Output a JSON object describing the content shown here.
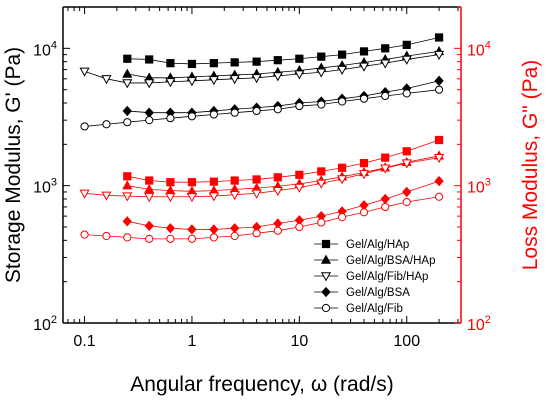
{
  "chart_data": {
    "type": "scatter",
    "xlabel": "Angular frequency, ω (rad/s)",
    "ylabel_left": "Storage Modulus, G' (Pa)",
    "ylabel_right": "Loss Modulus, G\" (Pa)",
    "x_scale": "log",
    "y_scale": "log",
    "xlim": [
      0.063,
      320
    ],
    "ylim_left": [
      100,
      20000
    ],
    "ylim_right": [
      100,
      20000
    ],
    "x_tick_labels": [
      "0.1",
      "1",
      "10",
      "100"
    ],
    "y_left_tick_labels": [
      {
        "base": "10",
        "exp": "2"
      },
      {
        "base": "10",
        "exp": "3"
      },
      {
        "base": "10",
        "exp": "4"
      }
    ],
    "y_right_tick_labels": [
      {
        "base": "10",
        "exp": "2"
      },
      {
        "base": "10",
        "exp": "3"
      },
      {
        "base": "10",
        "exp": "4"
      }
    ],
    "colors": {
      "storage": "#000000",
      "loss": "#ff0000"
    },
    "legend_position": "lower-right",
    "legend": [
      {
        "label": "Gel/Alg/HAp",
        "marker": "square-filled"
      },
      {
        "label": "Gel/Alg/BSA/HAp",
        "marker": "triangle-up-filled"
      },
      {
        "label": "Gel/Alg/Fib/HAp",
        "marker": "triangle-down-open"
      },
      {
        "label": "Gel/Alg/BSA",
        "marker": "diamond-filled"
      },
      {
        "label": "Gel/Alg/Fib",
        "marker": "circle-open"
      }
    ],
    "storage_series": [
      {
        "name": "Gel/Alg/HAp",
        "marker": "square-filled",
        "x": [
          0.25,
          0.4,
          0.63,
          1,
          1.6,
          2.5,
          4,
          6.3,
          10,
          16,
          25,
          40,
          63,
          100,
          200
        ],
        "y": [
          8400,
          8300,
          7800,
          7700,
          7800,
          7900,
          8000,
          8200,
          8400,
          8700,
          9000,
          9500,
          10000,
          10600,
          12000
        ]
      },
      {
        "name": "Gel/Alg/BSA/HAp",
        "marker": "triangle-up-filled",
        "x": [
          0.25,
          0.4,
          0.63,
          1,
          1.6,
          2.5,
          4,
          6.3,
          10,
          16,
          25,
          40,
          63,
          100,
          200
        ],
        "y": [
          6500,
          6100,
          6100,
          6200,
          6300,
          6400,
          6500,
          6700,
          6900,
          7200,
          7500,
          7900,
          8300,
          8800,
          9500
        ]
      },
      {
        "name": "Gel/Alg/Fib/HAp",
        "marker": "triangle-down-open",
        "x": [
          0.1,
          0.16,
          0.25,
          0.4,
          0.63,
          1,
          1.6,
          2.5,
          4,
          6.3,
          10,
          16,
          25,
          40,
          63,
          100,
          200
        ],
        "y": [
          6800,
          6000,
          5600,
          5600,
          5700,
          5800,
          5900,
          6000,
          6100,
          6300,
          6500,
          6700,
          7000,
          7400,
          7800,
          8300,
          9000
        ]
      },
      {
        "name": "Gel/Alg/BSA",
        "marker": "diamond-filled",
        "x": [
          0.25,
          0.4,
          0.63,
          1,
          1.6,
          2.5,
          4,
          6.3,
          10,
          16,
          25,
          40,
          63,
          100,
          200
        ],
        "y": [
          3500,
          3400,
          3400,
          3400,
          3500,
          3600,
          3700,
          3800,
          4000,
          4100,
          4300,
          4500,
          4800,
          5100,
          5800
        ]
      },
      {
        "name": "Gel/Alg/Fib",
        "marker": "circle-open",
        "x": [
          0.1,
          0.16,
          0.25,
          0.4,
          0.63,
          1,
          1.6,
          2.5,
          4,
          6.3,
          10,
          16,
          25,
          40,
          63,
          100,
          200
        ],
        "y": [
          2700,
          2800,
          2900,
          3000,
          3100,
          3200,
          3300,
          3400,
          3500,
          3600,
          3800,
          3900,
          4100,
          4300,
          4500,
          4700,
          5000
        ]
      }
    ],
    "loss_series": [
      {
        "name": "Gel/Alg/HAp",
        "marker": "square-filled",
        "x": [
          0.25,
          0.4,
          0.63,
          1,
          1.6,
          2.5,
          4,
          6.3,
          10,
          16,
          25,
          40,
          63,
          100,
          200
        ],
        "y": [
          1170,
          1090,
          1060,
          1060,
          1070,
          1090,
          1110,
          1150,
          1200,
          1270,
          1350,
          1460,
          1600,
          1780,
          2150
        ]
      },
      {
        "name": "Gel/Alg/BSA/HAp",
        "marker": "triangle-up-filled",
        "x": [
          0.25,
          0.4,
          0.63,
          1,
          1.6,
          2.5,
          4,
          6.3,
          10,
          16,
          25,
          40,
          63,
          100,
          200
        ],
        "y": [
          1000,
          940,
          920,
          910,
          920,
          940,
          960,
          990,
          1030,
          1090,
          1160,
          1250,
          1350,
          1480,
          1650
        ]
      },
      {
        "name": "Gel/Alg/Fib/HAp",
        "marker": "triangle-down-open",
        "x": [
          0.1,
          0.16,
          0.25,
          0.4,
          0.63,
          1,
          1.6,
          2.5,
          4,
          6.3,
          10,
          16,
          25,
          40,
          63,
          100,
          200
        ],
        "y": [
          880,
          850,
          840,
          830,
          830,
          830,
          840,
          860,
          880,
          920,
          970,
          1040,
          1120,
          1220,
          1340,
          1460,
          1600
        ]
      },
      {
        "name": "Gel/Alg/BSA",
        "marker": "diamond-filled",
        "x": [
          0.25,
          0.4,
          0.63,
          1,
          1.6,
          2.5,
          4,
          6.3,
          10,
          16,
          25,
          40,
          63,
          100,
          200
        ],
        "y": [
          550,
          510,
          490,
          480,
          480,
          490,
          500,
          530,
          560,
          600,
          650,
          720,
          800,
          900,
          1080
        ]
      },
      {
        "name": "Gel/Alg/Fib",
        "marker": "circle-open",
        "x": [
          0.1,
          0.16,
          0.25,
          0.4,
          0.63,
          1,
          1.6,
          2.5,
          4,
          6.3,
          10,
          16,
          25,
          40,
          63,
          100,
          200
        ],
        "y": [
          440,
          430,
          420,
          410,
          410,
          410,
          420,
          430,
          450,
          470,
          500,
          540,
          590,
          640,
          700,
          760,
          830
        ]
      }
    ]
  }
}
